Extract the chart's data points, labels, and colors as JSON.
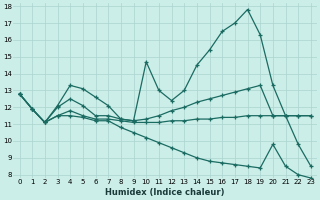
{
  "xlabel": "Humidex (Indice chaleur)",
  "background_color": "#cceee8",
  "grid_color": "#aad4ce",
  "line_color": "#1a6b62",
  "xlim": [
    -0.5,
    23.5
  ],
  "ylim": [
    7.8,
    18.2
  ],
  "xticks": [
    0,
    1,
    2,
    3,
    4,
    5,
    6,
    7,
    8,
    9,
    10,
    11,
    12,
    13,
    14,
    15,
    16,
    17,
    18,
    19,
    20,
    21,
    22,
    23
  ],
  "yticks": [
    8,
    9,
    10,
    11,
    12,
    13,
    14,
    15,
    16,
    17,
    18
  ],
  "series": [
    [
      12.8,
      11.9,
      11.1,
      12.1,
      13.3,
      13.1,
      12.6,
      12.1,
      11.3,
      11.2,
      14.7,
      13.0,
      12.4,
      13.0,
      14.5,
      15.4,
      16.5,
      17.0,
      17.8,
      16.3,
      13.3,
      11.5,
      9.8,
      8.5
    ],
    [
      12.8,
      11.9,
      11.1,
      12.0,
      12.5,
      12.1,
      11.5,
      11.5,
      11.3,
      11.2,
      11.3,
      11.5,
      11.8,
      12.0,
      12.3,
      12.5,
      12.7,
      12.9,
      13.1,
      13.3,
      11.5,
      11.5,
      11.5,
      11.5
    ],
    [
      12.8,
      11.9,
      11.1,
      11.5,
      11.8,
      11.5,
      11.3,
      11.3,
      11.2,
      11.1,
      11.1,
      11.1,
      11.2,
      11.2,
      11.3,
      11.3,
      11.4,
      11.4,
      11.5,
      11.5,
      11.5,
      11.5,
      11.5,
      11.5
    ],
    [
      12.8,
      11.9,
      11.1,
      11.5,
      11.5,
      11.4,
      11.2,
      11.2,
      10.8,
      10.5,
      10.2,
      9.9,
      9.6,
      9.3,
      9.0,
      8.8,
      8.7,
      8.6,
      8.5,
      8.4,
      9.8,
      8.5,
      8.0,
      7.8
    ]
  ]
}
